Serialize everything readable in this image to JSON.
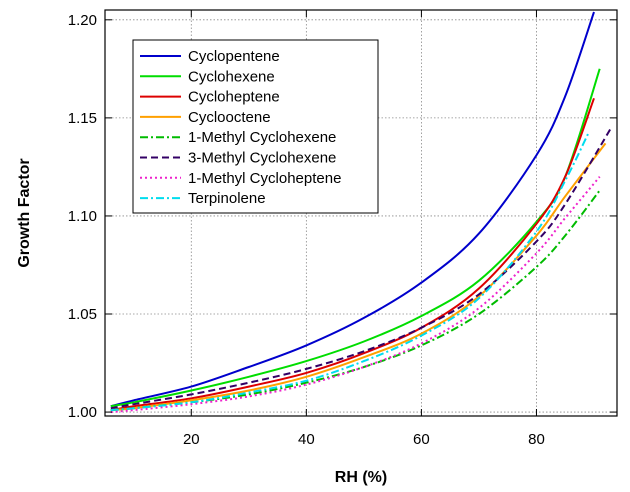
{
  "chart_data": {
    "type": "line",
    "title": "",
    "xlabel": "RH (%)",
    "ylabel": "Growth Factor",
    "xlim": [
      5,
      94
    ],
    "ylim": [
      0.998,
      1.205
    ],
    "x_ticks": [
      20,
      40,
      60,
      80
    ],
    "x_tick_labels": [
      "20",
      "40",
      "60",
      "80"
    ],
    "y_ticks": [
      1.0,
      1.05,
      1.1,
      1.15,
      1.2
    ],
    "y_tick_labels": [
      "1.00",
      "1.05",
      "1.10",
      "1.15",
      "1.20"
    ],
    "grid": true,
    "legend_position": "top-left",
    "series": [
      {
        "name": "Cyclopentene",
        "color": "#0000CC",
        "dash": "solid",
        "x": [
          6,
          10,
          20,
          30,
          40,
          50,
          60,
          70,
          80,
          85,
          90
        ],
        "y": [
          1.003,
          1.006,
          1.013,
          1.023,
          1.034,
          1.048,
          1.066,
          1.091,
          1.131,
          1.161,
          1.204
        ]
      },
      {
        "name": "Cyclohexene",
        "color": "#00DD00",
        "dash": "solid",
        "x": [
          6,
          10,
          20,
          30,
          40,
          50,
          60,
          70,
          80,
          85,
          91
        ],
        "y": [
          1.003,
          1.005,
          1.011,
          1.018,
          1.026,
          1.036,
          1.049,
          1.067,
          1.097,
          1.12,
          1.175
        ]
      },
      {
        "name": "Cycloheptene",
        "color": "#DD0000",
        "dash": "solid",
        "x": [
          6,
          10,
          20,
          30,
          40,
          50,
          60,
          70,
          80,
          85,
          90
        ],
        "y": [
          1.001,
          1.003,
          1.007,
          1.013,
          1.02,
          1.03,
          1.043,
          1.063,
          1.096,
          1.12,
          1.16
        ]
      },
      {
        "name": "Cyclooctene",
        "color": "#FFA000",
        "dash": "solid",
        "x": [
          6,
          10,
          20,
          30,
          40,
          50,
          60,
          70,
          80,
          85,
          92
        ],
        "y": [
          1.001,
          1.002,
          1.006,
          1.011,
          1.018,
          1.028,
          1.04,
          1.059,
          1.09,
          1.11,
          1.137
        ]
      },
      {
        "name": "1-Methyl Cyclohexene",
        "color": "#00BB00",
        "dash": "dashdot",
        "x": [
          6,
          10,
          20,
          30,
          40,
          50,
          60,
          70,
          80,
          85,
          91
        ],
        "y": [
          1.001,
          1.002,
          1.005,
          1.009,
          1.015,
          1.023,
          1.034,
          1.05,
          1.074,
          1.09,
          1.113
        ]
      },
      {
        "name": "3-Methyl Cyclohexene",
        "color": "#330066",
        "dash": "dashed",
        "x": [
          6,
          10,
          20,
          30,
          40,
          50,
          60,
          70,
          80,
          85,
          93
        ],
        "y": [
          1.002,
          1.004,
          1.009,
          1.015,
          1.022,
          1.031,
          1.043,
          1.06,
          1.087,
          1.106,
          1.145
        ]
      },
      {
        "name": "1-Methyl Cycloheptene",
        "color": "#EE22CC",
        "dash": "dotted",
        "x": [
          6,
          10,
          20,
          30,
          40,
          50,
          60,
          70,
          80,
          85,
          91
        ],
        "y": [
          1.0,
          1.001,
          1.004,
          1.008,
          1.014,
          1.023,
          1.035,
          1.053,
          1.081,
          1.099,
          1.12
        ]
      },
      {
        "name": "Terpinolene",
        "color": "#00DDEE",
        "dash": "dashdot",
        "x": [
          6,
          10,
          20,
          30,
          40,
          50,
          60,
          70,
          80,
          85,
          89
        ],
        "y": [
          1.001,
          1.002,
          1.005,
          1.01,
          1.016,
          1.026,
          1.039,
          1.058,
          1.092,
          1.118,
          1.142
        ]
      }
    ]
  }
}
